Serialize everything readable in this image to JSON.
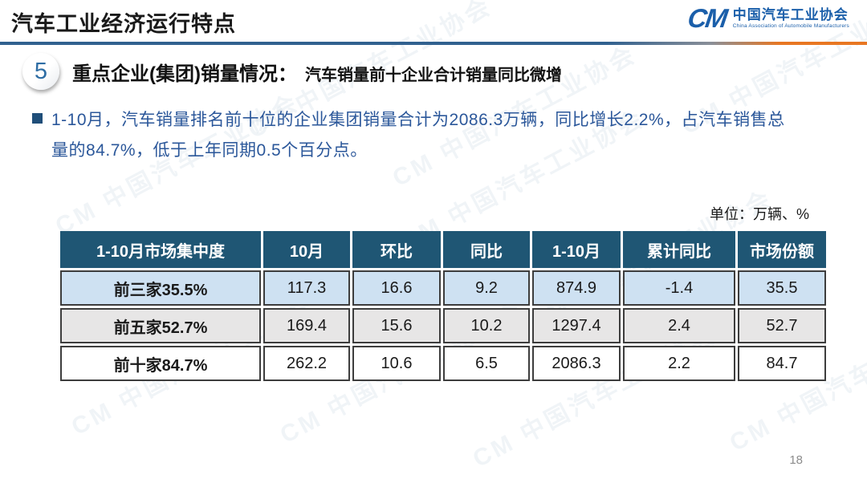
{
  "page": {
    "title": "汽车工业经济运行特点",
    "page_number": "18",
    "watermark": "中国汽车工业协会"
  },
  "logo": {
    "monogram": "CM",
    "org_name_cn": "中国汽车工业协会",
    "org_name_en": "China Association of Automobile Manufacturers"
  },
  "section": {
    "number": "5",
    "title": "重点企业(集团)销量情况：",
    "subtitle": "汽车销量前十企业合计销量同比微增"
  },
  "body": {
    "bullet_text": "1-10月，汽车销量排名前十位的企业集团销量合计为2086.3万辆，同比增长2.2%，占汽车销售总量的84.7%，低于上年同期0.5个百分点。"
  },
  "table": {
    "unit_label": "单位：万辆、%",
    "headers": [
      "1-10月市场集中度",
      "10月",
      "环比",
      "同比",
      "1-10月",
      "累计同比",
      "市场份额"
    ],
    "rows": [
      {
        "label": "前三家35.5%",
        "values": [
          "117.3",
          "16.6",
          "9.2",
          "874.9",
          "-1.4",
          "35.5"
        ]
      },
      {
        "label": "前五家52.7%",
        "values": [
          "169.4",
          "15.6",
          "10.2",
          "1297.4",
          "2.4",
          "52.7"
        ]
      },
      {
        "label": "前十家84.7%",
        "values": [
          "262.2",
          "10.6",
          "6.5",
          "2086.3",
          "2.2",
          "84.7"
        ]
      }
    ]
  },
  "colors": {
    "table_header_bg": "#1F5674",
    "row_blue": "#CEE1F2",
    "row_gray": "#E7E6E6",
    "row_white": "#FFFFFF",
    "body_text_blue": "#2B579A",
    "bullet_square_blue": "#1F4E79",
    "logo_blue": "#1B5FAA",
    "divider_blue": "#31618F",
    "divider_orange": "#E87722"
  }
}
